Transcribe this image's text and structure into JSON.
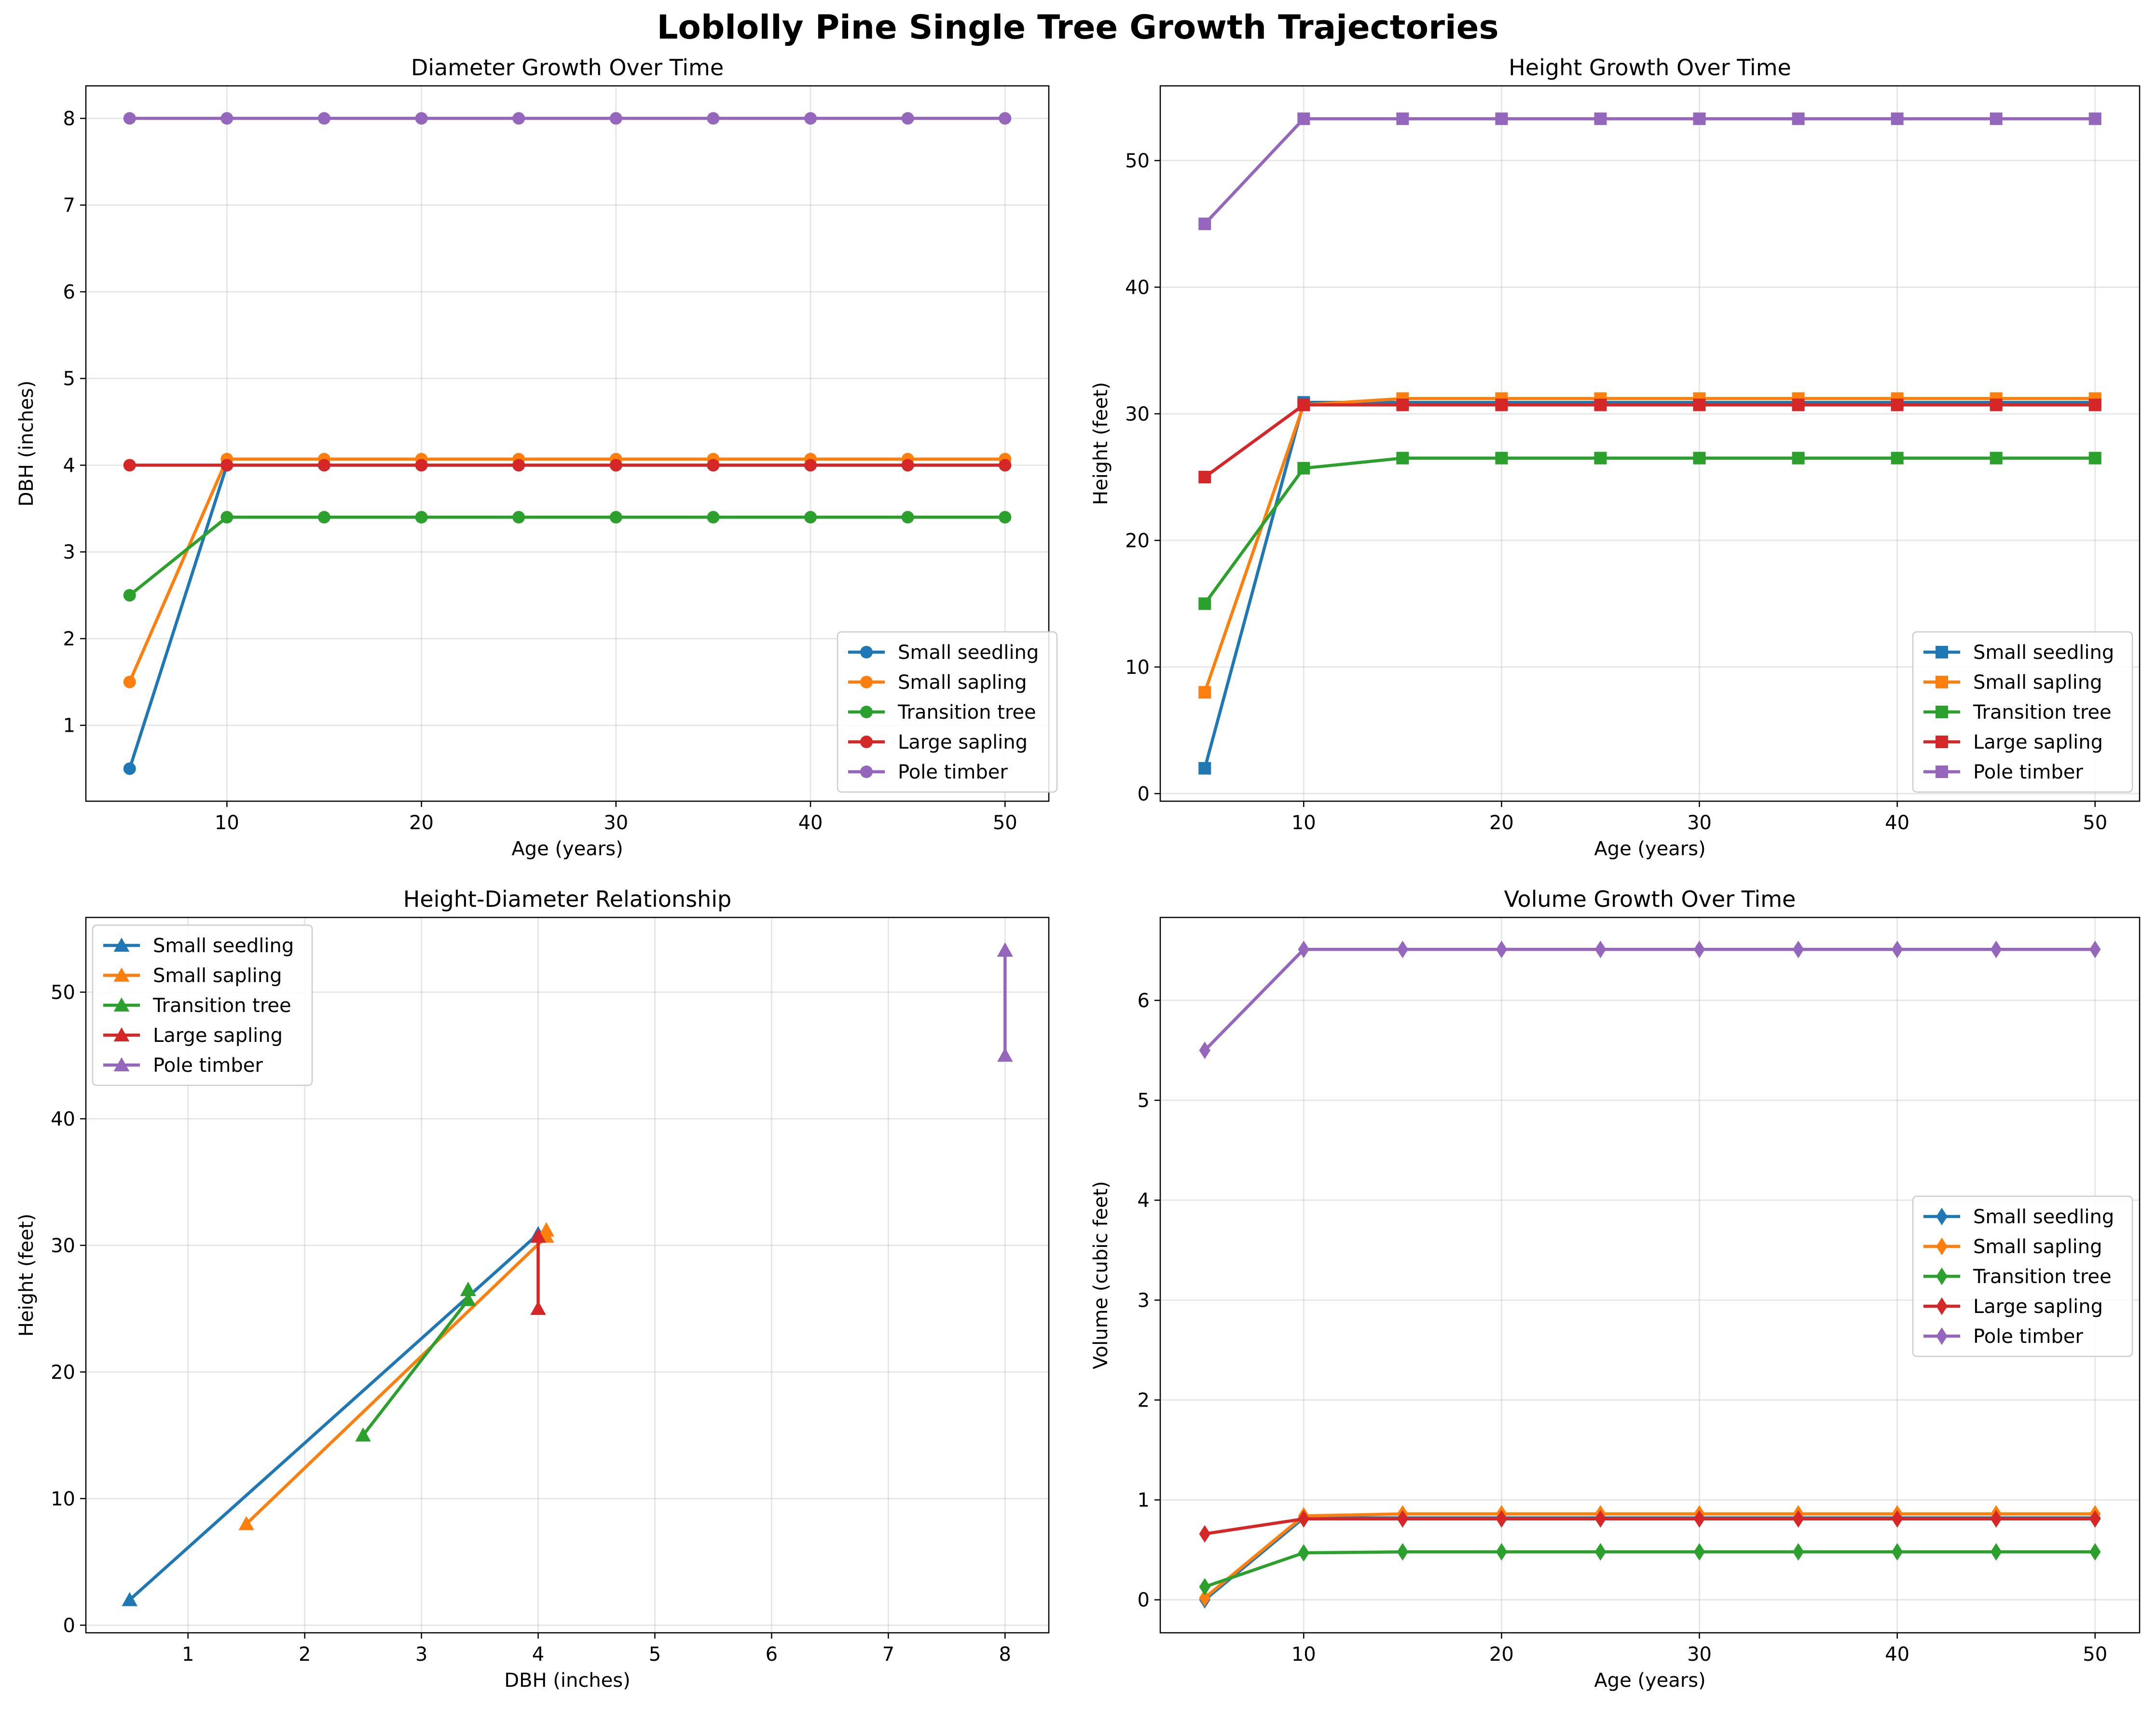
{
  "figure": {
    "title": "Loblolly Pine Single Tree Growth Trajectories"
  },
  "colors": {
    "Small seedling": "#1f77b4",
    "Small sapling": "#ff7f0e",
    "Transition tree": "#2ca02c",
    "Large sapling": "#d62728",
    "Pole timber": "#9467bd"
  },
  "chart_data": [
    {
      "id": "diameter",
      "type": "line",
      "title": "Diameter Growth Over Time",
      "xlabel": "Age (years)",
      "ylabel": "DBH (inches)",
      "marker": "circle",
      "grid": true,
      "legend_position": "lower-right",
      "xlim": [
        2.75,
        52.25
      ],
      "ylim": [
        0.125,
        8.375
      ],
      "xticks": [
        10,
        20,
        30,
        40,
        50
      ],
      "yticks": [
        1,
        2,
        3,
        4,
        5,
        6,
        7,
        8
      ],
      "x": [
        5,
        10,
        15,
        20,
        25,
        30,
        35,
        40,
        45,
        50
      ],
      "series": [
        {
          "name": "Small seedling",
          "values": [
            0.5,
            4.0,
            4.0,
            4.0,
            4.0,
            4.0,
            4.0,
            4.0,
            4.0,
            4.0
          ]
        },
        {
          "name": "Small sapling",
          "values": [
            1.5,
            4.07,
            4.07,
            4.07,
            4.07,
            4.07,
            4.07,
            4.07,
            4.07,
            4.07
          ]
        },
        {
          "name": "Transition tree",
          "values": [
            2.5,
            3.4,
            3.4,
            3.4,
            3.4,
            3.4,
            3.4,
            3.4,
            3.4,
            3.4
          ]
        },
        {
          "name": "Large sapling",
          "values": [
            4.0,
            4.0,
            4.0,
            4.0,
            4.0,
            4.0,
            4.0,
            4.0,
            4.0,
            4.0
          ]
        },
        {
          "name": "Pole timber",
          "values": [
            8.0,
            8.0,
            8.0,
            8.0,
            8.0,
            8.0,
            8.0,
            8.0,
            8.0,
            8.0
          ]
        }
      ]
    },
    {
      "id": "height",
      "type": "line",
      "title": "Height Growth Over Time",
      "xlabel": "Age (years)",
      "ylabel": "Height (feet)",
      "marker": "square",
      "grid": true,
      "legend_position": "lower-right",
      "xlim": [
        2.75,
        52.25
      ],
      "ylim": [
        -0.6,
        55.9
      ],
      "xticks": [
        10,
        20,
        30,
        40,
        50
      ],
      "yticks": [
        0,
        10,
        20,
        30,
        40,
        50
      ],
      "x": [
        5,
        10,
        15,
        20,
        25,
        30,
        35,
        40,
        45,
        50
      ],
      "series": [
        {
          "name": "Small seedling",
          "values": [
            2.0,
            30.9,
            30.9,
            30.9,
            30.9,
            30.9,
            30.9,
            30.9,
            30.9,
            30.9
          ]
        },
        {
          "name": "Small sapling",
          "values": [
            8.0,
            30.7,
            31.2,
            31.2,
            31.2,
            31.2,
            31.2,
            31.2,
            31.2,
            31.2
          ]
        },
        {
          "name": "Transition tree",
          "values": [
            15.0,
            25.7,
            26.5,
            26.5,
            26.5,
            26.5,
            26.5,
            26.5,
            26.5,
            26.5
          ]
        },
        {
          "name": "Large sapling",
          "values": [
            25.0,
            30.7,
            30.7,
            30.7,
            30.7,
            30.7,
            30.7,
            30.7,
            30.7,
            30.7
          ]
        },
        {
          "name": "Pole timber",
          "values": [
            45.0,
            53.3,
            53.3,
            53.3,
            53.3,
            53.3,
            53.3,
            53.3,
            53.3,
            53.3
          ]
        }
      ]
    },
    {
      "id": "hd",
      "type": "line",
      "title": "Height-Diameter Relationship",
      "xlabel": "DBH (inches)",
      "ylabel": "Height (feet)",
      "marker": "triangle",
      "grid": true,
      "legend_position": "upper-left",
      "xlim": [
        0.125,
        8.375
      ],
      "ylim": [
        -0.6,
        55.9
      ],
      "xticks": [
        1,
        2,
        3,
        4,
        5,
        6,
        7,
        8
      ],
      "yticks": [
        0,
        10,
        20,
        30,
        40,
        50
      ],
      "series": [
        {
          "name": "Small seedling",
          "x": [
            0.5,
            4.0,
            4.0,
            4.0,
            4.0,
            4.0,
            4.0,
            4.0,
            4.0,
            4.0
          ],
          "values": [
            2.0,
            30.9,
            30.9,
            30.9,
            30.9,
            30.9,
            30.9,
            30.9,
            30.9,
            30.9
          ]
        },
        {
          "name": "Small sapling",
          "x": [
            1.5,
            4.07,
            4.07,
            4.07,
            4.07,
            4.07,
            4.07,
            4.07,
            4.07,
            4.07
          ],
          "values": [
            8.0,
            30.7,
            31.2,
            31.2,
            31.2,
            31.2,
            31.2,
            31.2,
            31.2,
            31.2
          ]
        },
        {
          "name": "Transition tree",
          "x": [
            2.5,
            3.4,
            3.4,
            3.4,
            3.4,
            3.4,
            3.4,
            3.4,
            3.4,
            3.4
          ],
          "values": [
            15.0,
            25.7,
            26.5,
            26.5,
            26.5,
            26.5,
            26.5,
            26.5,
            26.5,
            26.5
          ]
        },
        {
          "name": "Large sapling",
          "x": [
            4.0,
            4.0,
            4.0,
            4.0,
            4.0,
            4.0,
            4.0,
            4.0,
            4.0,
            4.0
          ],
          "values": [
            25.0,
            30.7,
            30.7,
            30.7,
            30.7,
            30.7,
            30.7,
            30.7,
            30.7,
            30.7
          ]
        },
        {
          "name": "Pole timber",
          "x": [
            8.0,
            8.0,
            8.0,
            8.0,
            8.0,
            8.0,
            8.0,
            8.0,
            8.0,
            8.0
          ],
          "values": [
            45.0,
            53.3,
            53.3,
            53.3,
            53.3,
            53.3,
            53.3,
            53.3,
            53.3,
            53.3
          ]
        }
      ]
    },
    {
      "id": "volume",
      "type": "line",
      "title": "Volume Growth Over Time",
      "xlabel": "Age (years)",
      "ylabel": "Volume (cubic feet)",
      "marker": "diamond",
      "grid": true,
      "legend_position": "center-right",
      "xlim": [
        2.75,
        52.25
      ],
      "ylim": [
        -0.33,
        6.83
      ],
      "xticks": [
        10,
        20,
        30,
        40,
        50
      ],
      "yticks": [
        0,
        1,
        2,
        3,
        4,
        5,
        6
      ],
      "x": [
        5,
        10,
        15,
        20,
        25,
        30,
        35,
        40,
        45,
        50
      ],
      "series": [
        {
          "name": "Small seedling",
          "values": [
            0.0,
            0.82,
            0.82,
            0.82,
            0.82,
            0.82,
            0.82,
            0.82,
            0.82,
            0.82
          ]
        },
        {
          "name": "Small sapling",
          "values": [
            0.02,
            0.84,
            0.86,
            0.86,
            0.86,
            0.86,
            0.86,
            0.86,
            0.86,
            0.86
          ]
        },
        {
          "name": "Transition tree",
          "values": [
            0.13,
            0.47,
            0.48,
            0.48,
            0.48,
            0.48,
            0.48,
            0.48,
            0.48,
            0.48
          ]
        },
        {
          "name": "Large sapling",
          "values": [
            0.66,
            0.81,
            0.81,
            0.81,
            0.81,
            0.81,
            0.81,
            0.81,
            0.81,
            0.81
          ]
        },
        {
          "name": "Pole timber",
          "values": [
            5.5,
            6.51,
            6.51,
            6.51,
            6.51,
            6.51,
            6.51,
            6.51,
            6.51,
            6.51
          ]
        }
      ]
    }
  ]
}
